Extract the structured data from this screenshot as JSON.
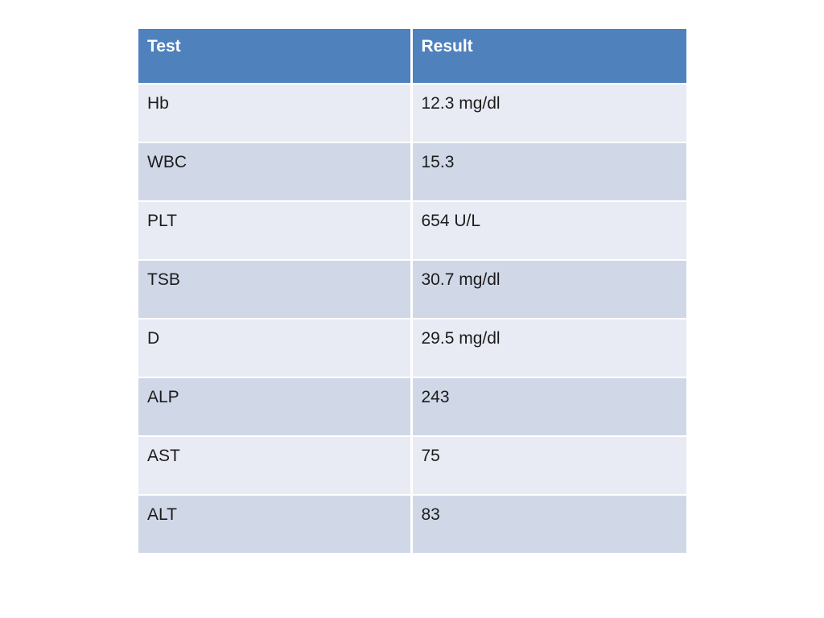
{
  "table": {
    "headers": {
      "test": "Test",
      "result": "Result"
    },
    "rows": [
      {
        "test": "Hb",
        "result": "12.3 mg/dl"
      },
      {
        "test": "WBC",
        "result": "15.3"
      },
      {
        "test": "PLT",
        "result": "654 U/L"
      },
      {
        "test": "TSB",
        "result": "30.7 mg/dl"
      },
      {
        "test": "D",
        "result": "29.5 mg/dl"
      },
      {
        "test": "ALP",
        "result": "243"
      },
      {
        "test": "AST",
        "result": "75"
      },
      {
        "test": "ALT",
        "result": "83"
      }
    ]
  },
  "colors": {
    "page_bg": "#ffffff",
    "header_bg": "#4f81bd",
    "header_text": "#ffffff",
    "row_odd_bg": "#d0d7e7",
    "row_even_bg": "#e9ebf4",
    "body_text": "#1c1c1c",
    "border_color": "#ffffff"
  }
}
